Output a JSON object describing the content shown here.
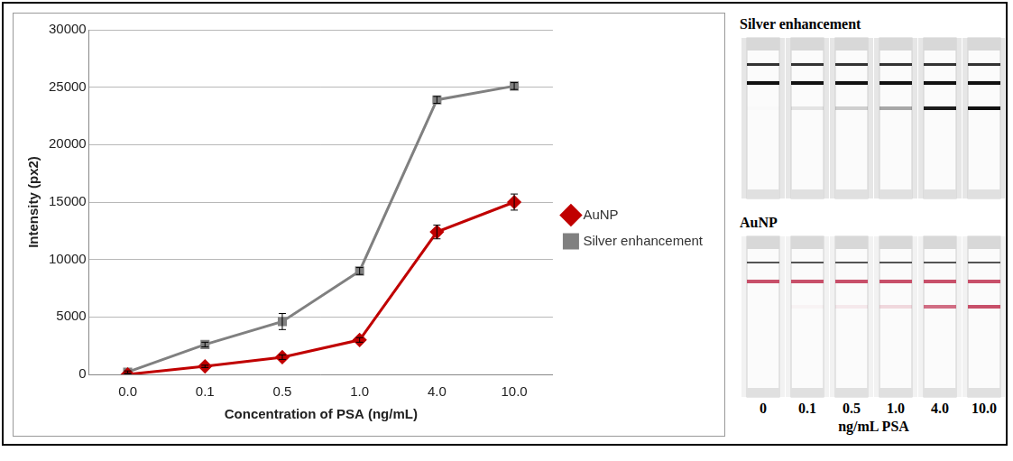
{
  "chart_data": {
    "type": "line",
    "x_label": "Concentration of PSA (ng/mL)",
    "y_label": "Intensity (px2)",
    "categories": [
      "0.0",
      "0.1",
      "0.5",
      "1.0",
      "4.0",
      "10.0"
    ],
    "series": [
      {
        "name": "AuNP",
        "color": "#c00000",
        "marker": "diamond",
        "values": [
          0,
          700,
          1500,
          3000,
          12400,
          15000
        ],
        "errors": [
          0,
          100,
          200,
          200,
          600,
          700
        ]
      },
      {
        "name": "Silver enhancement",
        "color": "#808080",
        "marker": "square",
        "values": [
          200,
          2600,
          4600,
          9000,
          23900,
          25100
        ],
        "errors": [
          100,
          200,
          700,
          300,
          300,
          300
        ]
      }
    ],
    "ylim": [
      0,
      30000
    ],
    "yticks": [
      0,
      5000,
      10000,
      15000,
      20000,
      25000,
      30000
    ],
    "grid": true,
    "legend": "right"
  },
  "strips": {
    "panels": [
      {
        "title": "Silver enhancement"
      },
      {
        "title": "AuNP"
      }
    ],
    "labels": [
      "0",
      "0.1",
      "0.5",
      "1.0",
      "4.0",
      "10.0"
    ],
    "unit_label": "ng/mL PSA"
  }
}
